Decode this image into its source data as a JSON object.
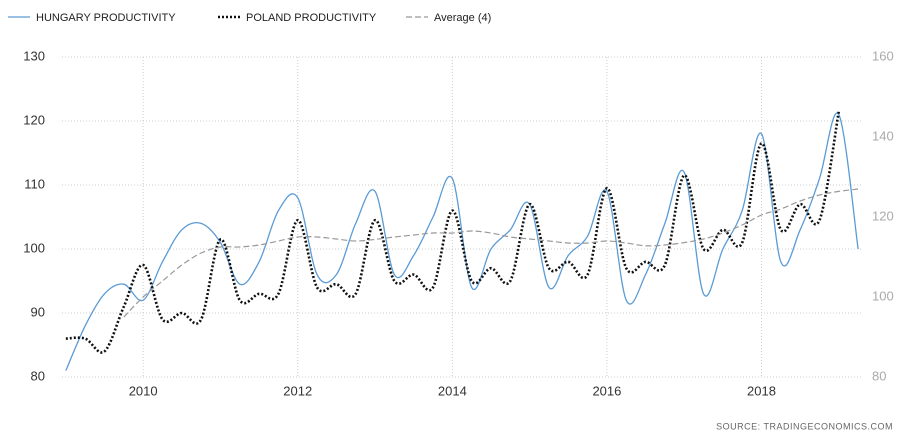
{
  "chart_data": {
    "type": "line",
    "source": "SOURCE:   TRADINGECONOMICS.COM",
    "x": [
      2009.0,
      2009.25,
      2009.5,
      2009.75,
      2010.0,
      2010.25,
      2010.5,
      2010.75,
      2011.0,
      2011.25,
      2011.5,
      2011.75,
      2012.0,
      2012.25,
      2012.5,
      2012.75,
      2013.0,
      2013.25,
      2013.5,
      2013.75,
      2014.0,
      2014.25,
      2014.5,
      2014.75,
      2015.0,
      2015.25,
      2015.5,
      2015.75,
      2016.0,
      2016.25,
      2016.5,
      2016.75,
      2017.0,
      2017.25,
      2017.5,
      2017.75,
      2018.0,
      2018.25,
      2018.5,
      2018.75,
      2019.0,
      2019.25
    ],
    "series": [
      {
        "name": "HUNGARY PRODUCTIVITY",
        "color": "#5b9bd5",
        "style": "solid",
        "values": [
          81,
          88,
          93,
          94.5,
          92,
          98,
          103,
          104,
          101,
          94.5,
          98,
          106,
          108,
          96,
          96,
          104,
          109,
          96,
          99,
          105,
          111,
          94,
          100,
          103,
          107,
          94,
          99,
          102,
          109,
          92,
          96,
          104,
          112,
          93,
          100,
          106,
          118,
          98,
          103,
          111,
          121,
          100
        ]
      },
      {
        "name": "POLAND PRODUCTIVITY",
        "color": "#111111",
        "style": "dotted",
        "axis": "y2",
        "values": [
          89.6,
          89.6,
          86.4,
          97.6,
          108,
          94.4,
          96,
          94.4,
          114.4,
          99.2,
          100.8,
          100.8,
          119.2,
          102.4,
          103.2,
          100.8,
          119.2,
          104,
          105.6,
          102.4,
          121.6,
          104,
          107.2,
          104,
          123.2,
          107.2,
          108.8,
          105.6,
          127.2,
          107.2,
          108.8,
          108,
          130.4,
          112,
          116.8,
          113.6,
          138.4,
          116.8,
          123.2,
          119.2,
          146.4,
          null
        ]
      },
      {
        "name": "Average (4)",
        "color": "#999999",
        "style": "dashed",
        "axis": "y2",
        "values": [
          null,
          null,
          null,
          95,
          100,
          104,
          108,
          111,
          112.5,
          112.5,
          113,
          114,
          115,
          115,
          114.5,
          114,
          114.4,
          115,
          115.5,
          116,
          116,
          116.5,
          116,
          115,
          114.5,
          114,
          113.5,
          113.5,
          114,
          113.5,
          112.8,
          113,
          113.6,
          114.5,
          116,
          118,
          120.5,
          122,
          124,
          125.5,
          126.4,
          127
        ]
      }
    ],
    "xlim": [
      2008.95,
      2019.3
    ],
    "xticks": [
      2010,
      2012,
      2014,
      2016,
      2018
    ],
    "ylim": [
      80,
      130
    ],
    "yticks": [
      80,
      90,
      100,
      110,
      120,
      130
    ],
    "y2lim": [
      80,
      160
    ],
    "y2ticks": [
      80,
      100,
      120,
      140,
      160
    ],
    "grid": true,
    "legend": "top"
  }
}
